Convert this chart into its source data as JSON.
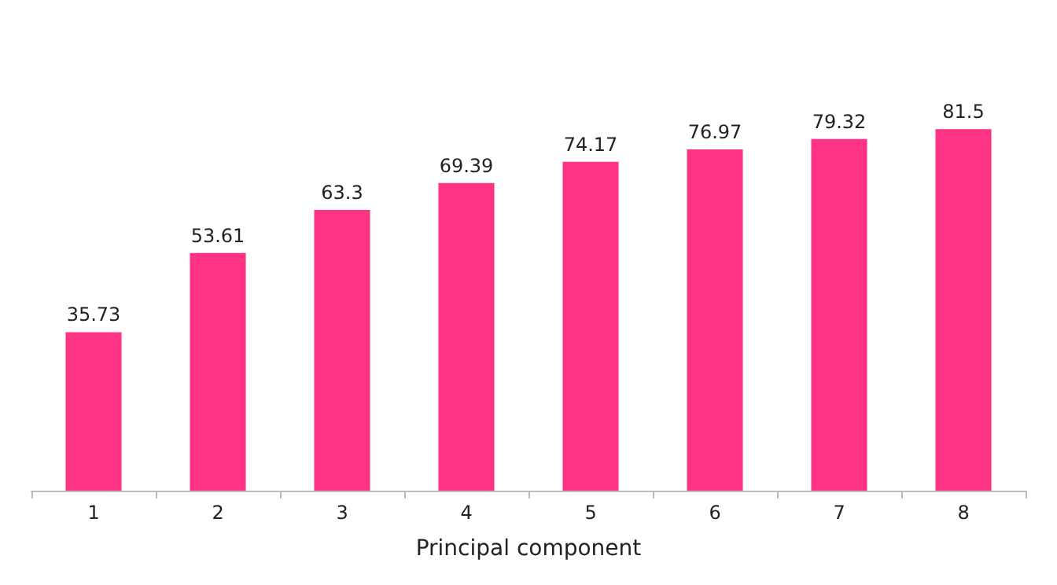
{
  "chart_data": {
    "type": "bar",
    "xlabel": "Principal component",
    "categories": [
      "1",
      "2",
      "3",
      "4",
      "5",
      "6",
      "7",
      "8"
    ],
    "values": [
      35.73,
      53.61,
      63.3,
      69.39,
      74.17,
      76.97,
      79.32,
      81.5
    ],
    "color": "#ff3385",
    "data_labels": true
  }
}
